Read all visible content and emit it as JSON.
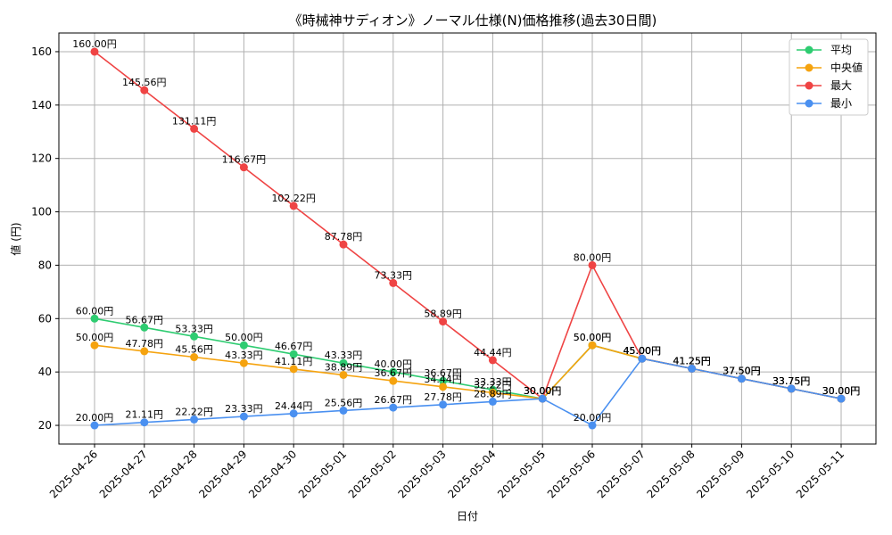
{
  "chart_data": {
    "type": "line",
    "title": "《時械神サディオン》ノーマル仕様(N)価格推移(過去30日間)",
    "xlabel": "日付",
    "ylabel": "値 (円)",
    "ylim": [
      13,
      167
    ],
    "yticks": [
      20,
      40,
      60,
      80,
      100,
      120,
      140,
      160
    ],
    "grid": true,
    "legend_position": "top-right",
    "value_suffix": "円",
    "categories": [
      "2025-04-26",
      "2025-04-27",
      "2025-04-28",
      "2025-04-29",
      "2025-04-30",
      "2025-05-01",
      "2025-05-02",
      "2025-05-03",
      "2025-05-04",
      "2025-05-05",
      "2025-05-06",
      "2025-05-07",
      "2025-05-08",
      "2025-05-09",
      "2025-05-10",
      "2025-05-11"
    ],
    "series": [
      {
        "name": "平均",
        "color": "#2ecc71",
        "values": [
          60.0,
          56.67,
          53.33,
          50.0,
          46.67,
          43.33,
          40.0,
          36.67,
          33.33,
          30.0,
          50.0,
          45.0,
          41.25,
          37.5,
          33.75,
          30.0
        ]
      },
      {
        "name": "中央値",
        "color": "#f5a30f",
        "values": [
          50.0,
          47.78,
          45.56,
          43.33,
          41.11,
          38.89,
          36.67,
          34.44,
          32.22,
          30.0,
          50.0,
          45.0,
          41.25,
          37.5,
          33.75,
          30.0
        ]
      },
      {
        "name": "最大",
        "color": "#ef4444",
        "values": [
          160.0,
          145.56,
          131.11,
          116.67,
          102.22,
          87.78,
          73.33,
          58.89,
          44.44,
          30.0,
          80.0,
          45.0,
          41.25,
          37.5,
          33.75,
          30.0
        ]
      },
      {
        "name": "最小",
        "color": "#4a90f0",
        "values": [
          20.0,
          21.11,
          22.22,
          23.33,
          24.44,
          25.56,
          26.67,
          27.78,
          28.89,
          30.0,
          20.0,
          45.0,
          41.25,
          37.5,
          33.75,
          30.0
        ]
      }
    ]
  }
}
